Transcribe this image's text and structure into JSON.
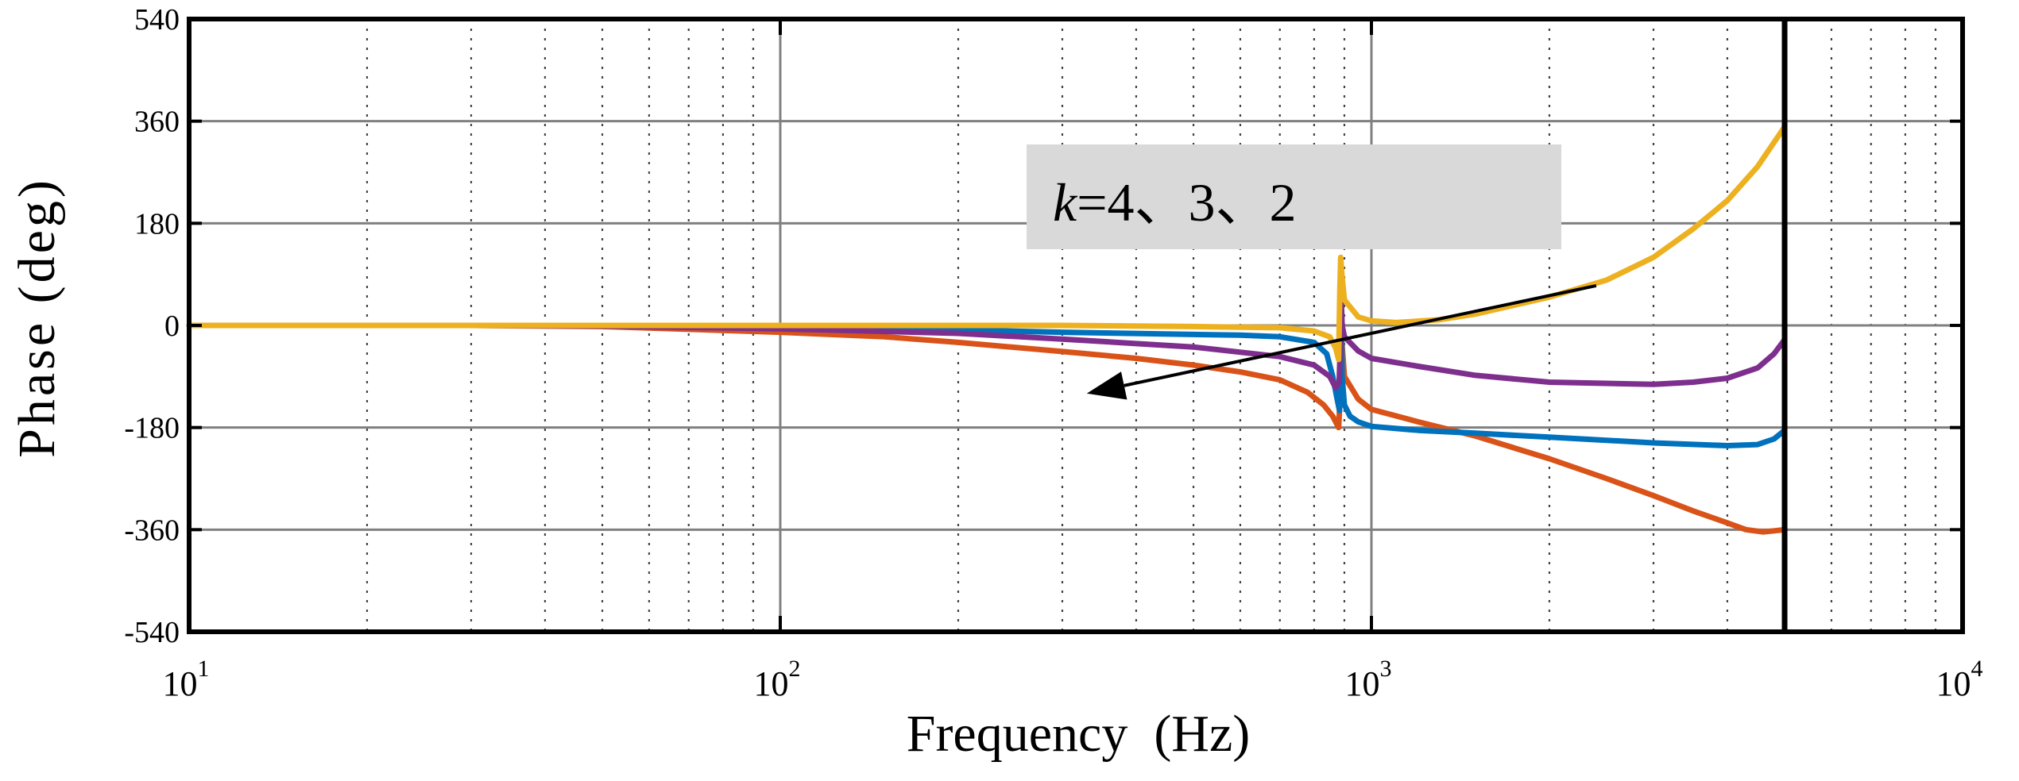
{
  "chart_data": {
    "type": "line",
    "title": "",
    "xlabel": "Frequency (Hz)",
    "ylabel": "Phase (deg)",
    "xscale": "log",
    "xlim": [
      10,
      10000
    ],
    "ylim": [
      -540,
      540
    ],
    "yticks": [
      540,
      360,
      180,
      0,
      -180,
      -360,
      -540
    ],
    "ytick_labels": [
      "540",
      "360",
      "180",
      "0",
      "-180",
      "-360",
      "-540"
    ],
    "xticks": [
      10,
      100,
      1000,
      10000
    ],
    "xtick_labels": [
      {
        "base": "10",
        "exp": "1"
      },
      {
        "base": "10",
        "exp": "2"
      },
      {
        "base": "10",
        "exp": "3"
      },
      {
        "base": "10",
        "exp": "4"
      }
    ],
    "grid": true,
    "vertical_line_x": 5000,
    "annotation": {
      "k_symbol": "k",
      "text": "=4、3、2",
      "arrow_from": [
        2400,
        70
      ],
      "arrow_to": [
        330,
        -120
      ]
    },
    "series": [
      {
        "name": "orange",
        "color": "#D95319",
        "points": [
          [
            10,
            0
          ],
          [
            30,
            0
          ],
          [
            50,
            -2
          ],
          [
            100,
            -12
          ],
          [
            150,
            -20
          ],
          [
            200,
            -30
          ],
          [
            300,
            -46
          ],
          [
            400,
            -58
          ],
          [
            500,
            -70
          ],
          [
            600,
            -82
          ],
          [
            700,
            -96
          ],
          [
            780,
            -118
          ],
          [
            830,
            -140
          ],
          [
            860,
            -160
          ],
          [
            880,
            -180
          ],
          [
            883,
            -150
          ],
          [
            888,
            -60
          ],
          [
            890,
            -20
          ],
          [
            893,
            -40
          ],
          [
            900,
            -90
          ],
          [
            950,
            -130
          ],
          [
            1000,
            -148
          ],
          [
            1200,
            -170
          ],
          [
            1500,
            -195
          ],
          [
            2000,
            -235
          ],
          [
            2500,
            -270
          ],
          [
            3000,
            -300
          ],
          [
            3500,
            -327
          ],
          [
            4000,
            -348
          ],
          [
            4300,
            -360
          ],
          [
            4600,
            -364
          ],
          [
            4800,
            -362
          ],
          [
            5000,
            -360
          ]
        ]
      },
      {
        "name": "blue",
        "color": "#0072BD",
        "points": [
          [
            10,
            0
          ],
          [
            50,
            0
          ],
          [
            100,
            -3
          ],
          [
            200,
            -8
          ],
          [
            300,
            -12
          ],
          [
            500,
            -16
          ],
          [
            600,
            -17
          ],
          [
            700,
            -20
          ],
          [
            800,
            -30
          ],
          [
            840,
            -50
          ],
          [
            860,
            -90
          ],
          [
            875,
            -130
          ],
          [
            883,
            -150
          ],
          [
            887,
            -80
          ],
          [
            889,
            -30
          ],
          [
            890,
            -10
          ],
          [
            892,
            -90
          ],
          [
            900,
            -140
          ],
          [
            920,
            -160
          ],
          [
            950,
            -170
          ],
          [
            1000,
            -178
          ],
          [
            1200,
            -185
          ],
          [
            1500,
            -190
          ],
          [
            2000,
            -197
          ],
          [
            3000,
            -207
          ],
          [
            4000,
            -212
          ],
          [
            4500,
            -210
          ],
          [
            4800,
            -200
          ],
          [
            5000,
            -185
          ]
        ]
      },
      {
        "name": "purple",
        "color": "#7E2F8E",
        "points": [
          [
            10,
            0
          ],
          [
            30,
            0
          ],
          [
            50,
            -1
          ],
          [
            100,
            -6
          ],
          [
            200,
            -14
          ],
          [
            300,
            -24
          ],
          [
            500,
            -38
          ],
          [
            700,
            -55
          ],
          [
            800,
            -70
          ],
          [
            850,
            -90
          ],
          [
            870,
            -110
          ],
          [
            882,
            -100
          ],
          [
            886,
            -30
          ],
          [
            889,
            48
          ],
          [
            892,
            0
          ],
          [
            900,
            -20
          ],
          [
            950,
            -45
          ],
          [
            1000,
            -58
          ],
          [
            1200,
            -72
          ],
          [
            1500,
            -88
          ],
          [
            2000,
            -100
          ],
          [
            3000,
            -104
          ],
          [
            3500,
            -100
          ],
          [
            4000,
            -93
          ],
          [
            4500,
            -75
          ],
          [
            4800,
            -50
          ],
          [
            5000,
            -25
          ]
        ]
      },
      {
        "name": "yellow",
        "color": "#EDB120",
        "points": [
          [
            10,
            0
          ],
          [
            100,
            0
          ],
          [
            300,
            0
          ],
          [
            500,
            -2
          ],
          [
            700,
            -4
          ],
          [
            800,
            -10
          ],
          [
            850,
            -20
          ],
          [
            870,
            -40
          ],
          [
            880,
            -60
          ],
          [
            884,
            60
          ],
          [
            887,
            120
          ],
          [
            892,
            85
          ],
          [
            900,
            45
          ],
          [
            950,
            15
          ],
          [
            1000,
            8
          ],
          [
            1100,
            5
          ],
          [
            1300,
            10
          ],
          [
            1500,
            20
          ],
          [
            2000,
            50
          ],
          [
            2500,
            80
          ],
          [
            3000,
            120
          ],
          [
            3500,
            170
          ],
          [
            4000,
            220
          ],
          [
            4500,
            280
          ],
          [
            5000,
            350
          ]
        ]
      }
    ]
  }
}
